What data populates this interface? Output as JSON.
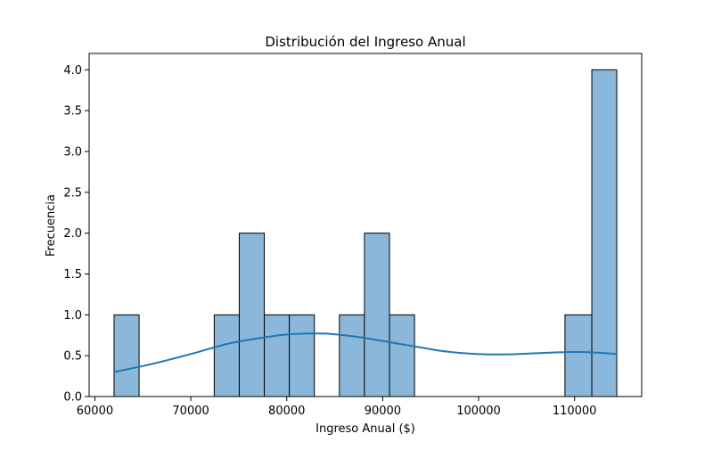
{
  "chart_data": {
    "type": "bar",
    "title": "Distribución del Ingreso Anual",
    "xlabel": "Ingreso Anual ($)",
    "ylabel": "Frecuencia",
    "xlim": [
      59400,
      117000
    ],
    "ylim": [
      0,
      4.2
    ],
    "xticks": [
      60000,
      70000,
      80000,
      90000,
      100000,
      110000
    ],
    "yticks": [
      0.0,
      0.5,
      1.0,
      1.5,
      2.0,
      2.5,
      3.0,
      3.5,
      4.0
    ],
    "ytick_labels": [
      "0.0",
      "0.5",
      "1.0",
      "1.5",
      "2.0",
      "2.5",
      "3.0",
      "3.5",
      "4.0"
    ],
    "bins": [
      {
        "x0": 62000,
        "x1": 64610,
        "count": 1
      },
      {
        "x0": 72440,
        "x1": 75050,
        "count": 1
      },
      {
        "x0": 75050,
        "x1": 77660,
        "count": 2
      },
      {
        "x0": 77660,
        "x1": 80270,
        "count": 1
      },
      {
        "x0": 80270,
        "x1": 82880,
        "count": 1
      },
      {
        "x0": 85490,
        "x1": 88100,
        "count": 1
      },
      {
        "x0": 88100,
        "x1": 90710,
        "count": 2
      },
      {
        "x0": 90710,
        "x1": 93320,
        "count": 1
      },
      {
        "x0": 109000,
        "x1": 111800,
        "count": 1
      },
      {
        "x0": 111800,
        "x1": 114400,
        "count": 4
      }
    ],
    "kde": {
      "x": [
        62000,
        66000,
        70000,
        74000,
        78000,
        80000,
        82000,
        84000,
        86000,
        88000,
        90000,
        92000,
        94000,
        96000,
        98000,
        100000,
        102000,
        104000,
        106000,
        108000,
        110000,
        112000,
        114400
      ],
      "y": [
        0.3,
        0.4,
        0.52,
        0.65,
        0.73,
        0.76,
        0.77,
        0.77,
        0.75,
        0.72,
        0.68,
        0.64,
        0.6,
        0.56,
        0.535,
        0.52,
        0.515,
        0.52,
        0.53,
        0.54,
        0.545,
        0.54,
        0.52
      ]
    },
    "colors": {
      "bar_fill": "#8bb8da",
      "bar_edge": "#000000",
      "kde_line": "#1f77b4"
    },
    "grid": false,
    "legend": "none"
  }
}
